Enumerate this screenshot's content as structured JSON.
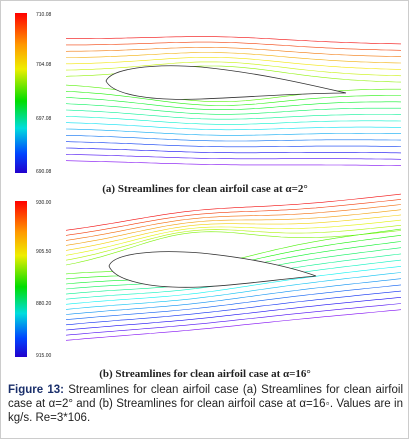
{
  "panels": [
    {
      "colorbar_labels": [
        "710.08",
        "704.08",
        "697.08",
        "690.08"
      ],
      "caption": "(a) Streamlines for clean airfoil case at α=2°"
    },
    {
      "colorbar_labels": [
        "930.00",
        "905.50",
        "880.20",
        "915.00"
      ],
      "caption": "(b) Streamlines for clean airfoil case at α=16°"
    }
  ],
  "figure_caption": {
    "label": "Figure 13:",
    "text": "Streamlines for clean airfoil case (a) Streamlines for clean airfoil case at α=2° and (b) Streamlines for clean airfoil case at α=16◦. Values are in kg/s. Re=3*106."
  }
}
